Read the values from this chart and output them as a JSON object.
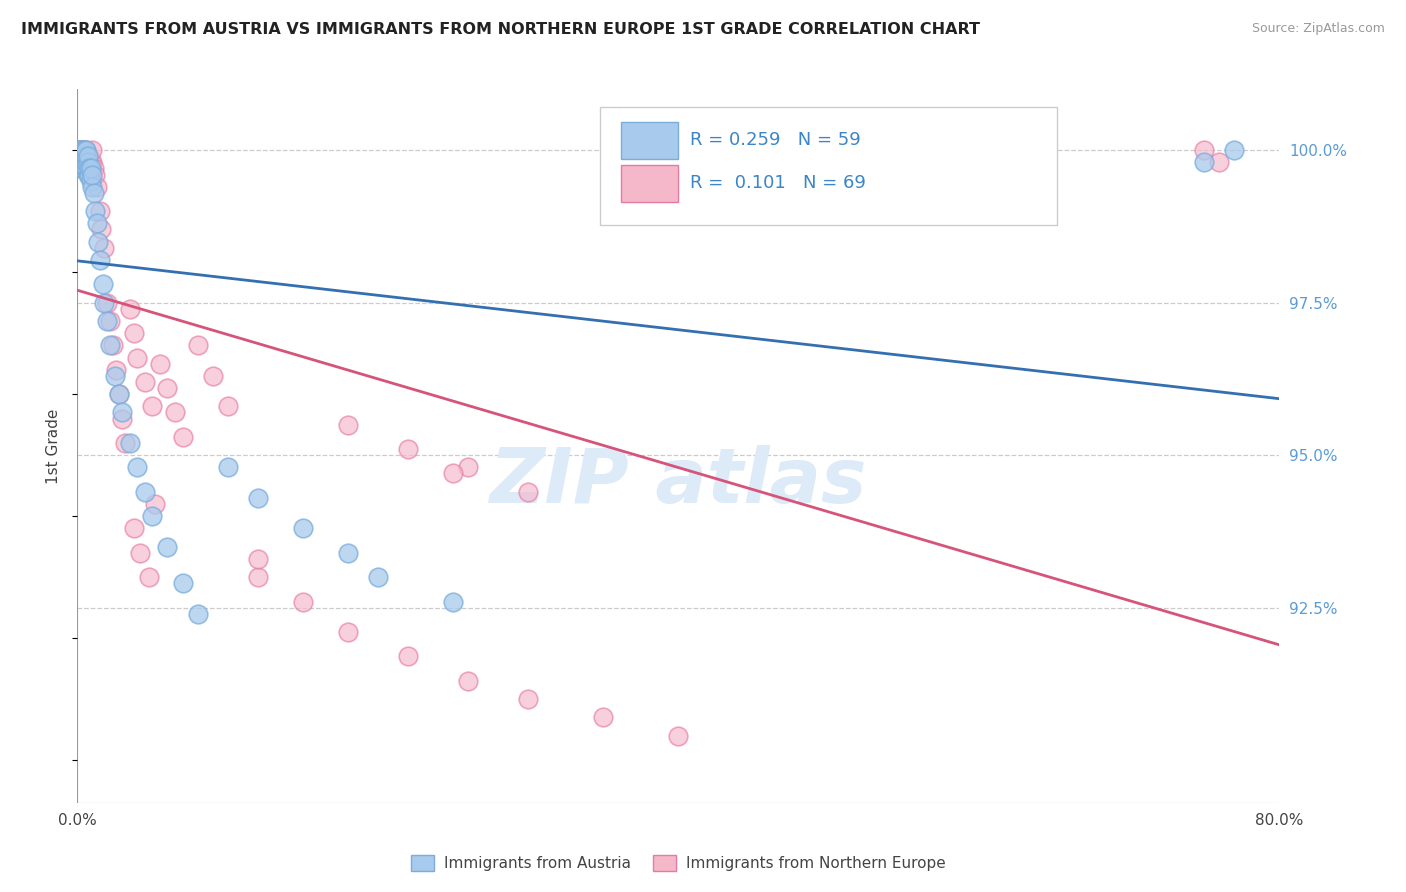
{
  "title": "IMMIGRANTS FROM AUSTRIA VS IMMIGRANTS FROM NORTHERN EUROPE 1ST GRADE CORRELATION CHART",
  "source": "Source: ZipAtlas.com",
  "ylabel": "1st Grade",
  "xlim": [
    0.0,
    0.8
  ],
  "ylim": [
    0.893,
    1.01
  ],
  "yticks_right": [
    1.0,
    0.975,
    0.95,
    0.925
  ],
  "ytick_labels_right": [
    "100.0%",
    "97.5%",
    "95.0%",
    "92.5%"
  ],
  "blue_R": 0.259,
  "blue_N": 59,
  "pink_R": 0.101,
  "pink_N": 69,
  "blue_face_color": "#a8caed",
  "blue_edge_color": "#7aaddc",
  "blue_line_color": "#3470b0",
  "pink_face_color": "#f5b8cb",
  "pink_edge_color": "#e87aa0",
  "pink_line_color": "#d6537a",
  "legend_label_blue": "Immigrants from Austria",
  "legend_label_pink": "Immigrants from Northern Europe",
  "blue_x": [
    0.001,
    0.001,
    0.001,
    0.002,
    0.002,
    0.002,
    0.002,
    0.002,
    0.003,
    0.003,
    0.003,
    0.003,
    0.004,
    0.004,
    0.004,
    0.005,
    0.005,
    0.005,
    0.005,
    0.006,
    0.006,
    0.006,
    0.006,
    0.007,
    0.007,
    0.007,
    0.008,
    0.008,
    0.009,
    0.009,
    0.01,
    0.01,
    0.011,
    0.012,
    0.013,
    0.014,
    0.015,
    0.017,
    0.018,
    0.02,
    0.022,
    0.025,
    0.028,
    0.03,
    0.035,
    0.04,
    0.045,
    0.05,
    0.06,
    0.07,
    0.08,
    0.1,
    0.12,
    0.15,
    0.18,
    0.2,
    0.25,
    0.75,
    0.77
  ],
  "blue_y": [
    0.998,
    1.0,
    0.999,
    0.997,
    0.999,
    1.0,
    0.998,
    0.999,
    0.997,
    0.998,
    0.999,
    1.0,
    0.998,
    0.999,
    1.0,
    0.997,
    0.998,
    0.999,
    1.0,
    0.997,
    0.998,
    0.999,
    1.0,
    0.996,
    0.998,
    0.999,
    0.996,
    0.997,
    0.995,
    0.997,
    0.994,
    0.996,
    0.993,
    0.99,
    0.988,
    0.985,
    0.982,
    0.978,
    0.975,
    0.972,
    0.968,
    0.963,
    0.96,
    0.957,
    0.952,
    0.948,
    0.944,
    0.94,
    0.935,
    0.929,
    0.924,
    0.948,
    0.943,
    0.938,
    0.934,
    0.93,
    0.926,
    0.998,
    1.0
  ],
  "pink_x": [
    0.001,
    0.001,
    0.002,
    0.002,
    0.002,
    0.003,
    0.003,
    0.003,
    0.004,
    0.004,
    0.004,
    0.005,
    0.005,
    0.005,
    0.006,
    0.006,
    0.007,
    0.007,
    0.008,
    0.008,
    0.009,
    0.009,
    0.01,
    0.01,
    0.011,
    0.012,
    0.013,
    0.015,
    0.016,
    0.018,
    0.02,
    0.022,
    0.024,
    0.026,
    0.028,
    0.03,
    0.032,
    0.035,
    0.038,
    0.04,
    0.045,
    0.05,
    0.055,
    0.06,
    0.065,
    0.07,
    0.08,
    0.09,
    0.1,
    0.12,
    0.15,
    0.18,
    0.22,
    0.26,
    0.3,
    0.35,
    0.4,
    0.18,
    0.22,
    0.26,
    0.12,
    0.25,
    0.3,
    0.75,
    0.76,
    0.038,
    0.042,
    0.048,
    0.052
  ],
  "pink_y": [
    0.999,
    1.0,
    0.998,
    1.0,
    0.999,
    0.999,
    1.0,
    0.998,
    0.999,
    1.0,
    0.998,
    0.999,
    1.0,
    0.998,
    0.999,
    1.0,
    0.999,
    0.998,
    0.998,
    0.999,
    0.997,
    0.998,
    0.998,
    1.0,
    0.997,
    0.996,
    0.994,
    0.99,
    0.987,
    0.984,
    0.975,
    0.972,
    0.968,
    0.964,
    0.96,
    0.956,
    0.952,
    0.974,
    0.97,
    0.966,
    0.962,
    0.958,
    0.965,
    0.961,
    0.957,
    0.953,
    0.968,
    0.963,
    0.958,
    0.93,
    0.926,
    0.921,
    0.917,
    0.913,
    0.91,
    0.907,
    0.904,
    0.955,
    0.951,
    0.948,
    0.933,
    0.947,
    0.944,
    1.0,
    0.998,
    0.938,
    0.934,
    0.93,
    0.942
  ]
}
